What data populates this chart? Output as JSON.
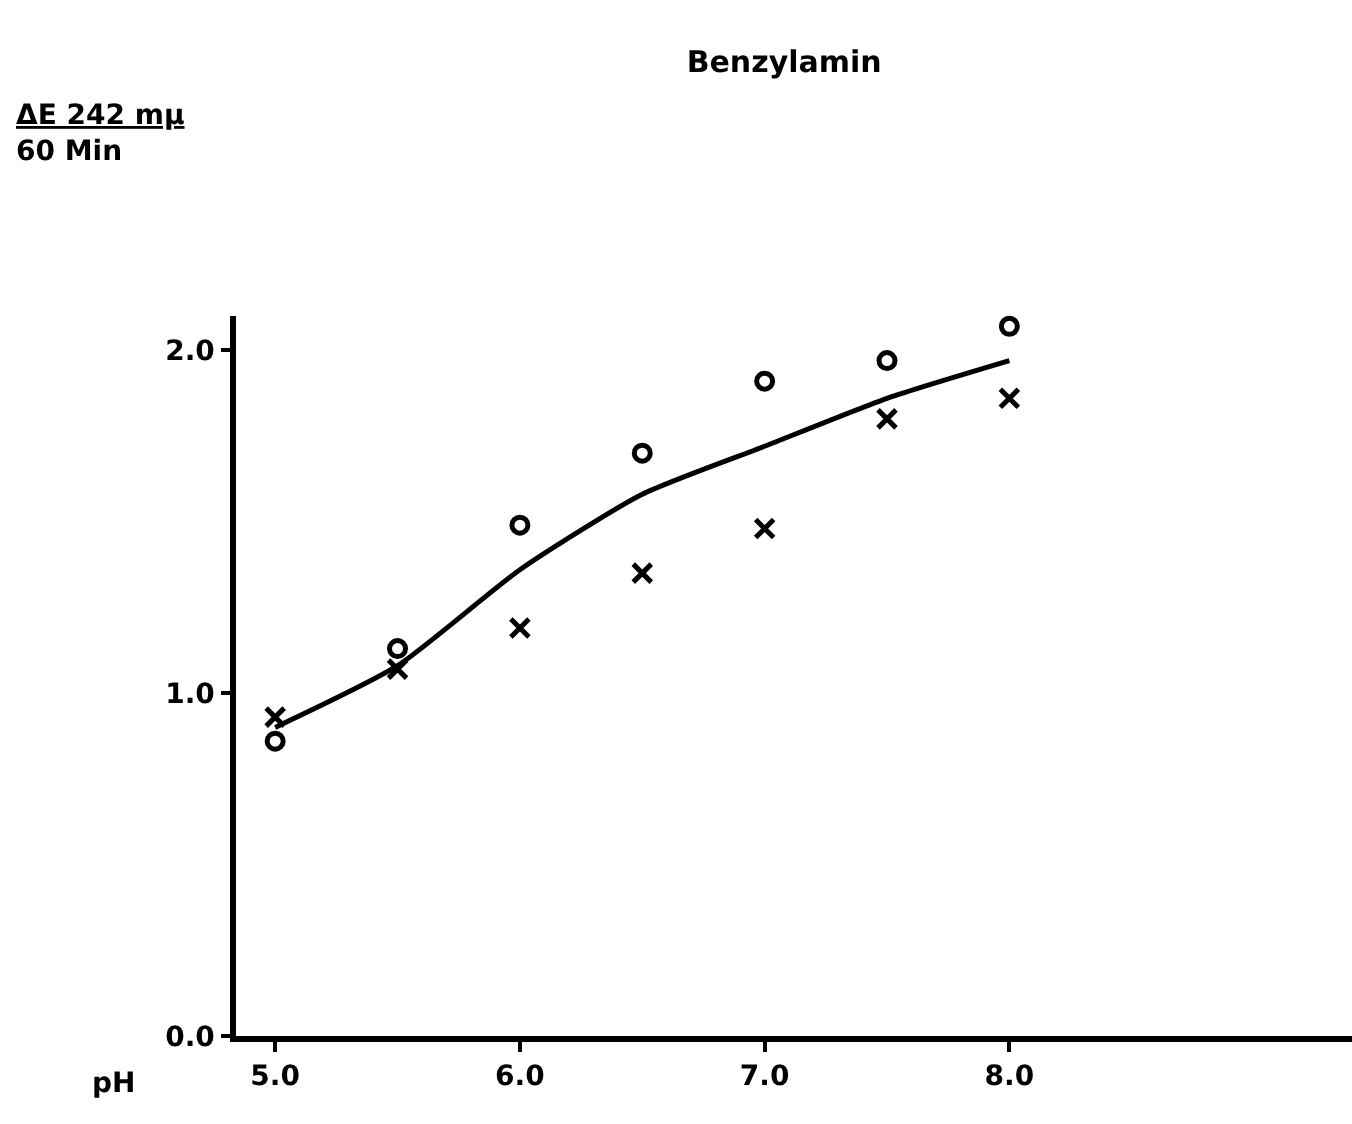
{
  "chart_data": {
    "type": "scatter",
    "title": "Benzylamin",
    "xlabel": "pH",
    "annotations": [
      "ΔE 242 mμ\n60 Min"
    ],
    "x": [
      5.0,
      5.5,
      6.0,
      6.5,
      7.0,
      7.5,
      8.0
    ],
    "series": [
      {
        "marker": "circle",
        "color": "#000000",
        "values": [
          0.86,
          1.13,
          1.49,
          1.7,
          1.91,
          1.97,
          2.07
        ]
      },
      {
        "marker": "cross",
        "color": "#000000",
        "values": [
          0.93,
          1.07,
          1.19,
          1.35,
          1.48,
          1.8,
          1.86
        ]
      },
      {
        "type": "line",
        "marker": "none",
        "line_style": "solid",
        "color": "#000000",
        "values": [
          0.9,
          1.08,
          1.36,
          1.58,
          1.72,
          1.86,
          1.97
        ]
      }
    ],
    "xlim": [
      4.84,
      9.4
    ],
    "xticks": [
      {
        "value": 5.0,
        "label": "5.0"
      },
      {
        "value": 6.0,
        "label": "6.0"
      },
      {
        "value": 7.0,
        "label": "7.0"
      },
      {
        "value": 8.0,
        "label": "8.0"
      }
    ],
    "ylim": [
      0,
      2.1
    ],
    "yticks": [
      {
        "value": 0,
        "label": "0.0"
      },
      {
        "value": 1.0,
        "label": "1.0"
      },
      {
        "value": 2.0,
        "label": "2.0"
      }
    ],
    "grid": false
  }
}
